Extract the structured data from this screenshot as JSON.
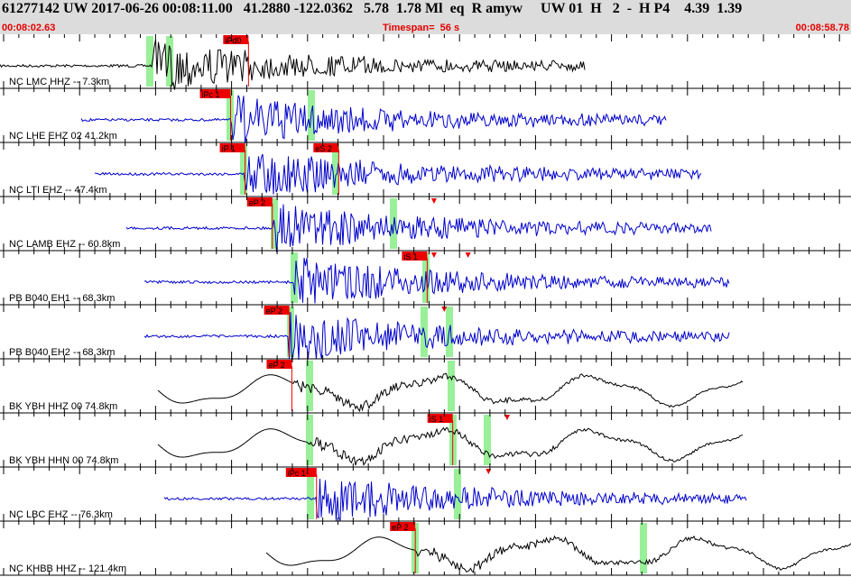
{
  "header": {
    "title": "61277142 UW 2017-06-26 00:08:11.00   41.2880 -122.0362   5.78  1.78 Ml  eq  R amyw     UW 01  H   2  -  H P4    4.39  1.39",
    "start_time": "00:08:02.63",
    "timespan": "Timespan=  56 s",
    "end_time": "00:08:58.78"
  },
  "colors": {
    "header_bg": "#dcdcdc",
    "header_sub_text": "#e60000",
    "trace_black": "#000000",
    "trace_blue": "#0000cc",
    "pick_red": "#ee0000",
    "window_green": "#99f099",
    "ticks": "#000000"
  },
  "traces": [
    {
      "label": "NC LMC HHZ -- 7.3km",
      "color": "black",
      "picks": [
        {
          "label": "iPd0",
          "t": 0.292
        }
      ],
      "markers": []
    },
    {
      "label": "NC LHE EHZ 02 41.2km",
      "color": "blue",
      "picks": [
        {
          "label": "iPc 1",
          "t": 0.271
        }
      ],
      "markers": []
    },
    {
      "label": "NC LTI EHZ -- 47.4km",
      "color": "blue",
      "picks": [
        {
          "label": "iP 1",
          "t": 0.288
        },
        {
          "label": "eS 2",
          "t": 0.398
        }
      ],
      "markers": []
    },
    {
      "label": "NC LAMB EHZ -- 60.8km",
      "color": "blue",
      "picks": [
        {
          "label": "eP 2",
          "t": 0.32
        }
      ],
      "markers": [
        0.51
      ]
    },
    {
      "label": "PB B040 EH1 -- 68.3km",
      "color": "blue",
      "picks": [
        {
          "label": "iS 1",
          "t": 0.502
        }
      ],
      "markers": [
        0.51,
        0.55
      ]
    },
    {
      "label": "PB B040 EH2 -- 68.3km",
      "color": "blue",
      "picks": [
        {
          "label": "eP 2",
          "t": 0.34
        }
      ],
      "markers": [
        0.522
      ]
    },
    {
      "label": "BK YBH HHZ 00 74.8km",
      "color": "black",
      "picks": [
        {
          "label": "eP 2",
          "t": 0.343
        }
      ],
      "markers": []
    },
    {
      "label": "BK YBH HHN 00 74.8km",
      "color": "black",
      "picks": [
        {
          "label": "iS 1",
          "t": 0.532
        }
      ],
      "markers": [
        0.596
      ]
    },
    {
      "label": "NC LBC EHZ -- 76.3km",
      "color": "blue",
      "picks": [
        {
          "label": "iPc 1",
          "t": 0.372
        }
      ],
      "markers": [
        0.574
      ]
    },
    {
      "label": "NC KHBB HHZ -- 121.4km",
      "color": "black",
      "picks": [
        {
          "label": "eP 2",
          "t": 0.488
        }
      ],
      "markers": []
    }
  ]
}
